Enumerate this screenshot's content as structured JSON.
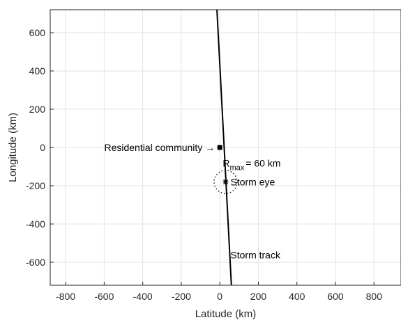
{
  "chart_data": {
    "type": "scatter",
    "xlabel": "Latitude (km)",
    "ylabel": "Longitude (km)",
    "xlim": [
      -880,
      940
    ],
    "ylim": [
      -720,
      720
    ],
    "xticks": [
      -800,
      -600,
      -400,
      -200,
      0,
      200,
      400,
      600,
      800
    ],
    "yticks": [
      -600,
      -400,
      -200,
      0,
      200,
      400,
      600
    ],
    "grid": true,
    "storm_track": {
      "label": "Storm track",
      "points": [
        [
          -15,
          720
        ],
        [
          60,
          -720
        ]
      ]
    },
    "storm_eye": {
      "label": "Storm eye",
      "x": 30,
      "y": -180
    },
    "rmax_circle": {
      "center": [
        30,
        -180
      ],
      "radius": 60,
      "label_main": "R",
      "label_sub": "max",
      "label_rest": "= 60 km"
    },
    "residential_community": {
      "label": "Residential community →",
      "x": 0,
      "y": 0
    }
  }
}
